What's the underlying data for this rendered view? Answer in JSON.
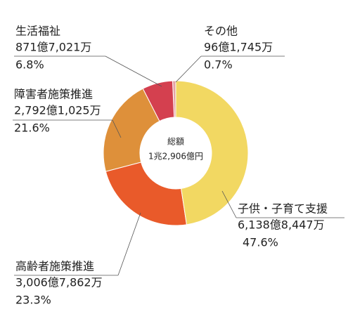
{
  "chart_data": {
    "type": "pie",
    "center_title": "総額",
    "center_total": "1兆2,906億円",
    "categories": [
      "子供・子育て支援",
      "高齢者施策推進",
      "障害者施策推進",
      "生活福祉",
      "その他"
    ],
    "amount_labels": [
      "6,138億8,447万",
      "3,006億7,862万",
      "2,792億1,025万",
      "871億7,021万",
      "96億1,745万"
    ],
    "values": [
      47.6,
      23.3,
      21.6,
      6.8,
      0.7
    ],
    "value_labels": [
      "47.6%",
      "23.3%",
      "21.6%",
      "6.8%",
      "0.7%"
    ],
    "colors": [
      "#f2d862",
      "#e95a2a",
      "#de903a",
      "#d4404f",
      "#e6a3a3"
    ]
  }
}
